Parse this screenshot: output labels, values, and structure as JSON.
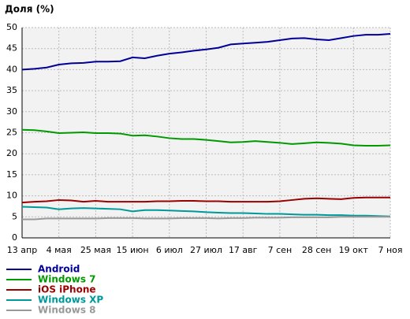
{
  "chart_data": {
    "type": "line",
    "title": "Доля (%)",
    "categories": [
      "13 апр",
      null,
      null,
      "4 мая",
      null,
      null,
      "25 мая",
      null,
      null,
      "15 июн",
      null,
      null,
      "6 июл",
      null,
      null,
      "27 июл",
      null,
      null,
      "17 авг",
      null,
      null,
      "7 сен",
      null,
      null,
      "28 сен",
      null,
      null,
      "19 окт",
      null,
      null,
      "7 ноя"
    ],
    "series": [
      {
        "name": "Android",
        "color": "#000099",
        "values": [
          40.0,
          40.2,
          40.5,
          41.2,
          41.5,
          41.6,
          41.9,
          41.9,
          42.0,
          42.9,
          42.7,
          43.3,
          43.8,
          44.1,
          44.5,
          44.8,
          45.2,
          46.0,
          46.2,
          46.4,
          46.6,
          47.0,
          47.4,
          47.5,
          47.2,
          47.0,
          47.5,
          48.0,
          48.3,
          48.3,
          48.5
        ]
      },
      {
        "name": "Windows 7",
        "color": "#009900",
        "values": [
          25.7,
          25.6,
          25.3,
          24.9,
          25.0,
          25.1,
          24.9,
          24.9,
          24.8,
          24.3,
          24.4,
          24.1,
          23.7,
          23.5,
          23.5,
          23.3,
          23.0,
          22.7,
          22.8,
          23.0,
          22.8,
          22.6,
          22.3,
          22.5,
          22.7,
          22.6,
          22.4,
          22.0,
          21.9,
          21.9,
          22.0
        ]
      },
      {
        "name": "iOS iPhone",
        "color": "#990000",
        "values": [
          8.4,
          8.6,
          8.7,
          9.0,
          8.9,
          8.6,
          8.8,
          8.6,
          8.6,
          8.6,
          8.6,
          8.7,
          8.7,
          8.8,
          8.8,
          8.7,
          8.7,
          8.6,
          8.6,
          8.6,
          8.6,
          8.7,
          9.0,
          9.3,
          9.4,
          9.3,
          9.2,
          9.5,
          9.6,
          9.6,
          9.6
        ]
      },
      {
        "name": "Windows XP",
        "color": "#009999",
        "values": [
          7.4,
          7.3,
          7.2,
          6.8,
          7.0,
          7.1,
          7.0,
          6.9,
          6.8,
          6.3,
          6.6,
          6.6,
          6.5,
          6.4,
          6.3,
          6.1,
          6.0,
          5.9,
          5.9,
          5.8,
          5.7,
          5.7,
          5.6,
          5.5,
          5.5,
          5.4,
          5.4,
          5.3,
          5.3,
          5.2,
          5.1
        ]
      },
      {
        "name": "Windows 8",
        "color": "#999999",
        "values": [
          4.4,
          4.4,
          4.6,
          4.6,
          4.6,
          4.6,
          4.6,
          4.7,
          4.7,
          4.7,
          4.6,
          4.6,
          4.6,
          4.7,
          4.7,
          4.7,
          4.6,
          4.7,
          4.7,
          4.8,
          4.8,
          4.8,
          4.9,
          4.9,
          4.9,
          4.9,
          5.0,
          5.0,
          5.0,
          5.0,
          5.0
        ]
      }
    ],
    "ylim": [
      0,
      50
    ],
    "yticks": [
      0,
      5,
      10,
      15,
      20,
      25,
      30,
      35,
      40,
      45,
      50
    ],
    "grid": true
  }
}
